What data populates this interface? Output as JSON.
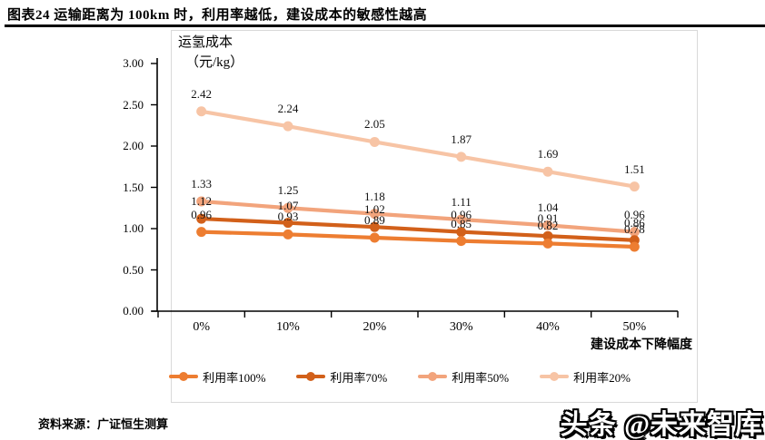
{
  "header": {
    "title": "图表24 运输距离为 100km 时，利用率越低，建设成本的敏感性越高"
  },
  "footer": {
    "source": "资料来源：广证恒生测算",
    "watermark": "头条 @未来智库"
  },
  "chart_data": {
    "type": "line",
    "y_axis_title_line1": "运氢成本",
    "y_axis_title_line2": "（元/kg）",
    "xlabel": "建设成本下降幅度",
    "categories": [
      "0%",
      "10%",
      "20%",
      "30%",
      "40%",
      "50%"
    ],
    "y_ticks": [
      "3.00",
      "2.50",
      "2.00",
      "1.50",
      "1.00",
      "0.50",
      "0.00"
    ],
    "ylim": [
      0,
      3
    ],
    "grid": false,
    "legend_position": "bottom",
    "axis_color": "#000000",
    "series": [
      {
        "name": "利用率100%",
        "color": "#ED7D31",
        "values": [
          0.96,
          0.93,
          0.89,
          0.85,
          0.82,
          0.78
        ],
        "labels": [
          "0.96",
          "0.93",
          "0.89",
          "0.85",
          "0.82",
          "0.78"
        ]
      },
      {
        "name": "利用率70%",
        "color": "#D2601A",
        "values": [
          1.12,
          1.07,
          1.02,
          0.96,
          0.91,
          0.86
        ],
        "labels": [
          "1.12",
          "1.07",
          "1.02",
          "0.96",
          "0.91",
          "0.86"
        ]
      },
      {
        "name": "利用率50%",
        "color": "#F2A47C",
        "values": [
          1.33,
          1.25,
          1.18,
          1.11,
          1.04,
          0.96
        ],
        "labels": [
          "1.33",
          "1.25",
          "1.18",
          "1.11",
          "1.04",
          "0.96"
        ]
      },
      {
        "name": "利用率20%",
        "color": "#F7C4A5",
        "values": [
          2.42,
          2.24,
          2.05,
          1.87,
          1.69,
          1.51
        ],
        "labels": [
          "2.42",
          "2.24",
          "2.05",
          "1.87",
          "1.69",
          "1.51"
        ]
      }
    ]
  }
}
